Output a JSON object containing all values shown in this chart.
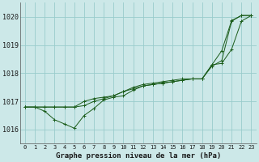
{
  "title": "Graphe pression niveau de la mer (hPa)",
  "bg_color": "#cce8e8",
  "grid_color": "#99cccc",
  "line_color": "#1a5c1a",
  "xlim": [
    -0.5,
    23.5
  ],
  "ylim": [
    1015.5,
    1020.5
  ],
  "yticks": [
    1016,
    1017,
    1018,
    1019,
    1020
  ],
  "xticks": [
    0,
    1,
    2,
    3,
    4,
    5,
    6,
    7,
    8,
    9,
    10,
    11,
    12,
    13,
    14,
    15,
    16,
    17,
    18,
    19,
    20,
    21,
    22,
    23
  ],
  "hours": [
    0,
    1,
    2,
    3,
    4,
    5,
    6,
    7,
    8,
    9,
    10,
    11,
    12,
    13,
    14,
    15,
    16,
    17,
    18,
    19,
    20,
    21,
    22,
    23
  ],
  "series1": [
    1016.8,
    1016.8,
    1016.65,
    1016.35,
    1016.2,
    1016.05,
    1016.5,
    1016.75,
    1017.05,
    1017.15,
    1017.2,
    1017.4,
    1017.55,
    1017.6,
    1017.65,
    1017.7,
    1017.75,
    1017.8,
    1017.8,
    1018.3,
    1018.35,
    1018.85,
    1019.85,
    1020.05
  ],
  "series2": [
    1016.8,
    1016.8,
    1016.8,
    1016.8,
    1016.8,
    1016.8,
    1016.85,
    1017.0,
    1017.1,
    1017.2,
    1017.35,
    1017.45,
    1017.55,
    1017.6,
    1017.65,
    1017.7,
    1017.75,
    1017.8,
    1017.8,
    1018.25,
    1018.45,
    1019.85,
    1020.05,
    1020.05
  ],
  "series3": [
    1016.8,
    1016.8,
    1016.8,
    1016.8,
    1016.8,
    1016.8,
    1017.0,
    1017.1,
    1017.15,
    1017.2,
    1017.35,
    1017.5,
    1017.6,
    1017.65,
    1017.7,
    1017.75,
    1017.8,
    1017.8,
    1017.8,
    1018.3,
    1018.8,
    1019.87,
    1020.05,
    1020.05
  ]
}
